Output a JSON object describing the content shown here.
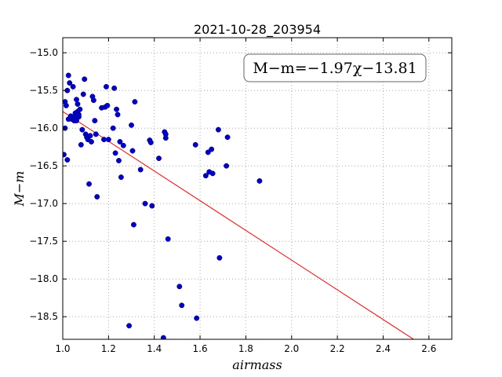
{
  "chart_data": {
    "type": "scatter",
    "title": "2021-10-28_203954",
    "xlabel": "airmass",
    "ylabel": "M−m",
    "xlim": [
      1.0,
      2.7
    ],
    "ylim": [
      -18.8,
      -14.8
    ],
    "y_inverted": true,
    "xticks": [
      1.0,
      1.2,
      1.4,
      1.6,
      1.8,
      2.0,
      2.2,
      2.4,
      2.6
    ],
    "xtick_labels": [
      "1.0",
      "1.2",
      "1.4",
      "1.6",
      "1.8",
      "2.0",
      "2.2",
      "2.4",
      "2.6"
    ],
    "yticks": [
      -15.0,
      -15.5,
      -16.0,
      -16.5,
      -17.0,
      -17.5,
      -18.0,
      -18.5
    ],
    "ytick_labels": [
      "−15.0",
      "−15.5",
      "−16.0",
      "−16.5",
      "−17.0",
      "−17.5",
      "−18.0",
      "−18.5"
    ],
    "grid": true,
    "annotation": {
      "text": "M−m=−1.97χ−13.81",
      "placement": "top-right"
    },
    "colors": {
      "points": "#0000cc",
      "fit_line": "#ff0000",
      "frame": "#000000",
      "grid": "#999999"
    },
    "fit_line": {
      "slope": -1.97,
      "intercept": -13.81
    },
    "series": [
      {
        "x": [
          1.005,
          1.01,
          1.01,
          1.015,
          1.02,
          1.02,
          1.025,
          1.025,
          1.03,
          1.035,
          1.04,
          1.045,
          1.05,
          1.05,
          1.055,
          1.06,
          1.06,
          1.065,
          1.065,
          1.07,
          1.07,
          1.075,
          1.08,
          1.085,
          1.09,
          1.095,
          1.1,
          1.105,
          1.11,
          1.115,
          1.12,
          1.125,
          1.13,
          1.135,
          1.14,
          1.145,
          1.15,
          1.17,
          1.18,
          1.185,
          1.19,
          1.195,
          1.2,
          1.22,
          1.225,
          1.23,
          1.235,
          1.24,
          1.245,
          1.25,
          1.255,
          1.265,
          1.29,
          1.3,
          1.305,
          1.31,
          1.315,
          1.34,
          1.36,
          1.38,
          1.385,
          1.39,
          1.42,
          1.44,
          1.445,
          1.45,
          1.45,
          1.46,
          1.51,
          1.52,
          1.58,
          1.585,
          1.625,
          1.635,
          1.64,
          1.65,
          1.655,
          1.68,
          1.685,
          1.715,
          1.72,
          1.86
        ],
        "y": [
          -16.35,
          -16.0,
          -15.65,
          -15.7,
          -15.5,
          -16.42,
          -15.88,
          -15.3,
          -15.4,
          -15.84,
          -15.88,
          -15.45,
          -15.9,
          -15.85,
          -15.8,
          -15.62,
          -15.9,
          -15.78,
          -15.68,
          -15.85,
          -15.82,
          -15.75,
          -16.22,
          -16.02,
          -15.55,
          -15.35,
          -16.08,
          -16.12,
          -16.15,
          -16.74,
          -16.1,
          -16.18,
          -15.58,
          -15.63,
          -15.9,
          -16.08,
          -16.91,
          -15.73,
          -16.15,
          -15.72,
          -15.45,
          -15.7,
          -16.15,
          -16.0,
          -15.47,
          -16.33,
          -15.75,
          -15.82,
          -16.43,
          -16.18,
          -16.65,
          -16.23,
          -18.62,
          -15.96,
          -16.3,
          -17.28,
          -15.65,
          -16.55,
          -17.0,
          -16.16,
          -16.19,
          -17.03,
          -16.4,
          -18.78,
          -16.05,
          -16.08,
          -16.13,
          -17.47,
          -18.1,
          -18.35,
          -16.22,
          -18.52,
          -16.63,
          -16.32,
          -16.58,
          -16.28,
          -16.6,
          -16.02,
          -17.72,
          -16.5,
          -16.12,
          -16.7
        ]
      }
    ]
  }
}
